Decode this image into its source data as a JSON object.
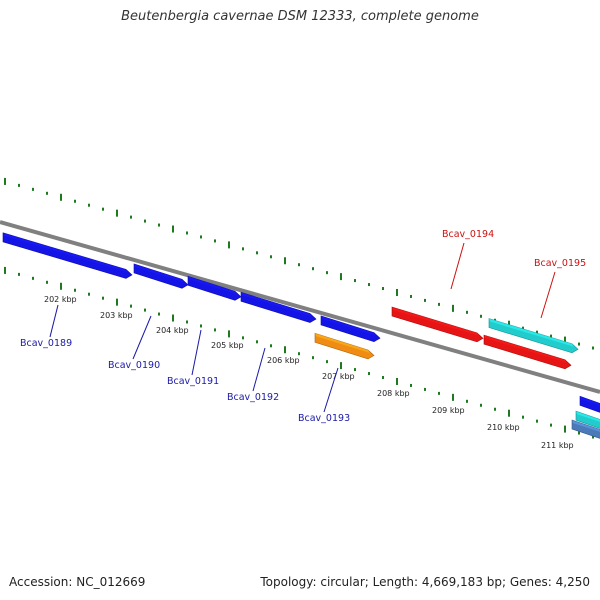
{
  "title": "Beutenbergia cavernae DSM 12333, complete genome",
  "accession": "Accession: NC_012669",
  "topology": "Topology: circular; Length: 4,669,183 bp; Genes: 4,250",
  "colors": {
    "backbone": "#808080",
    "tick": "#1e7a1e",
    "gene_blue": "#1414e6",
    "gene_red": "#e61414",
    "gene_cyan": "#22cccc",
    "gene_orange": "#f08c14",
    "label_blue": "#1a1aa6",
    "label_red": "#cc1111"
  },
  "kbp_labels": [
    "202 kbp",
    "203 kbp",
    "204 kbp",
    "205 kbp",
    "206 kbp",
    "207 kbp",
    "208 kbp",
    "209 kbp",
    "210 kbp",
    "211 kbp"
  ],
  "genes": [
    {
      "name": "Bcav_0189",
      "color": "blue"
    },
    {
      "name": "Bcav_0190",
      "color": "blue"
    },
    {
      "name": "Bcav_0191",
      "color": "blue"
    },
    {
      "name": "Bcav_0192",
      "color": "blue"
    },
    {
      "name": "Bcav_0193",
      "color": "blue"
    },
    {
      "name": "Bcav_0194",
      "color": "red"
    },
    {
      "name": "Bcav_0195",
      "color": "red"
    }
  ],
  "extra_features": [
    {
      "color": "orange"
    },
    {
      "color": "cyan"
    },
    {
      "color": "blue"
    }
  ]
}
